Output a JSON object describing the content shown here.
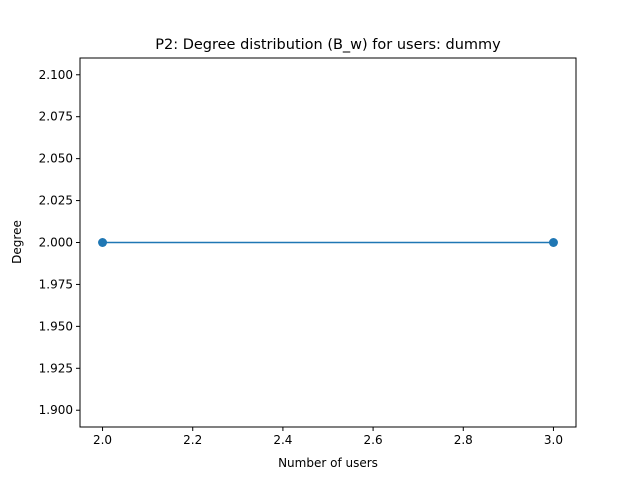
{
  "chart_data": {
    "type": "line",
    "title": "P2: Degree distribution (B_w) for users: dummy",
    "xlabel": "Number of users",
    "ylabel": "Degree",
    "xlim": [
      1.95,
      3.05
    ],
    "ylim": [
      1.89,
      2.11
    ],
    "xticks": [
      2.0,
      2.2,
      2.4,
      2.6,
      2.8,
      3.0
    ],
    "xtick_labels": [
      "2.0",
      "2.2",
      "2.4",
      "2.6",
      "2.8",
      "3.0"
    ],
    "yticks": [
      1.9,
      1.925,
      1.95,
      1.975,
      2.0,
      2.025,
      2.05,
      2.075,
      2.1
    ],
    "ytick_labels": [
      "1.900",
      "1.925",
      "1.950",
      "1.975",
      "2.000",
      "2.025",
      "2.050",
      "2.075",
      "2.100"
    ],
    "grid": false,
    "legend": "none",
    "series": [
      {
        "x": [
          2,
          3
        ],
        "y": [
          2.0,
          2.0
        ],
        "color": "#1f77b4",
        "marker": "circle"
      }
    ]
  }
}
